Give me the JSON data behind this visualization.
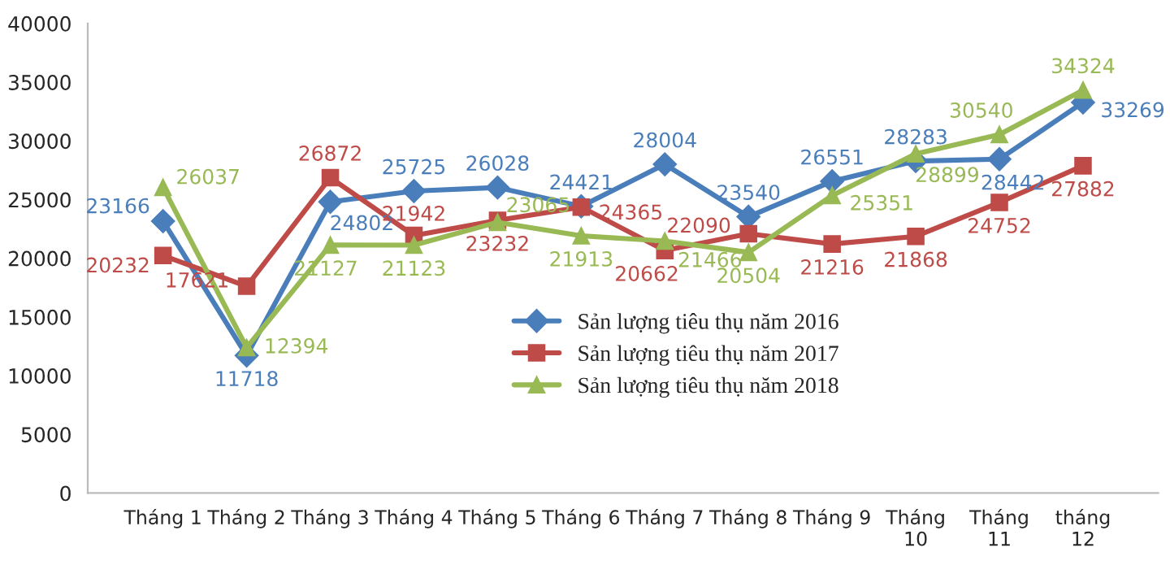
{
  "chart_data": {
    "type": "line",
    "categories": [
      "Tháng 1",
      "Tháng 2",
      "Tháng 3",
      "Tháng 4",
      "Tháng 5",
      "Tháng 6",
      "Tháng 7",
      "Tháng 8",
      "Tháng 9",
      "Tháng 10",
      "Tháng 11",
      "tháng 12"
    ],
    "series": [
      {
        "name": "Sản lượng tiêu thụ năm 2016",
        "color": "#4a7ebb",
        "marker": "diamond",
        "values": [
          23166,
          11718,
          24802,
          25725,
          26028,
          24421,
          28004,
          23540,
          26551,
          28283,
          28442,
          33269
        ]
      },
      {
        "name": "Sản lượng tiêu thụ năm 2017",
        "color": "#be4b48",
        "marker": "square",
        "values": [
          20232,
          17621,
          26872,
          21942,
          23232,
          24365,
          20662,
          22090,
          21216,
          21868,
          24752,
          27882
        ]
      },
      {
        "name": "Sản lượng tiêu thụ năm 2018",
        "color": "#98b954",
        "marker": "triangle",
        "values": [
          26037,
          12394,
          21127,
          21123,
          23065,
          21913,
          21466,
          20504,
          25351,
          28899,
          30540,
          34324
        ]
      }
    ],
    "ylim": [
      0,
      40000
    ],
    "yticks": [
      0,
      5000,
      10000,
      15000,
      20000,
      25000,
      30000,
      35000,
      40000
    ],
    "data_labels": true,
    "grid": false,
    "legend": "bottom"
  }
}
